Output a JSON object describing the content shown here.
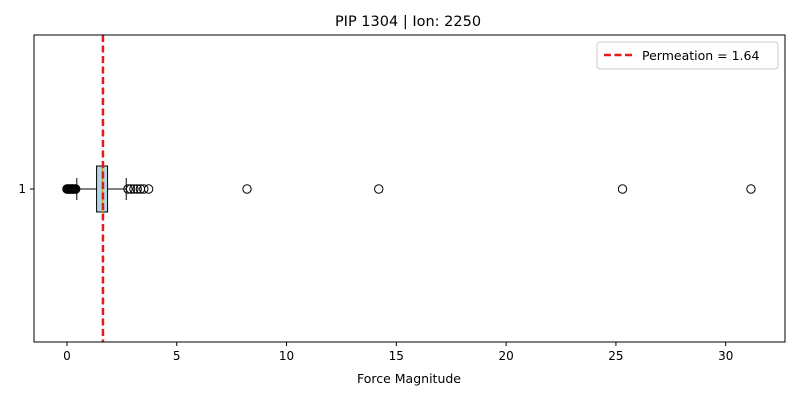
{
  "chart_data": {
    "type": "boxplot",
    "orientation": "horizontal",
    "title": "PIP 1304 | Ion: 2250",
    "xlabel": "Force Magnitude",
    "ylabel": "",
    "xlim": [
      -1.5,
      32.7
    ],
    "xticks": [
      0,
      5,
      10,
      15,
      20,
      25,
      30
    ],
    "yticks": [
      "1"
    ],
    "grid": false,
    "legend": {
      "placement": "top-right",
      "entries": [
        "Permeation = 1.64"
      ]
    },
    "box": {
      "category": "1",
      "q1": 1.35,
      "median": 1.62,
      "q3": 1.85,
      "whisker_low": 0.45,
      "whisker_high": 2.7,
      "fill": "#add8e6",
      "median_color": "#d4a017"
    },
    "outliers": [
      0.0,
      0.04,
      0.08,
      0.12,
      0.16,
      0.2,
      0.24,
      0.28,
      0.32,
      0.36,
      0.4,
      2.78,
      2.9,
      3.05,
      3.2,
      3.35,
      3.5,
      3.72,
      8.2,
      14.2,
      25.3,
      31.15
    ],
    "reference_line": {
      "value": 1.64,
      "label": "Permeation = 1.64",
      "color": "#e41a1c",
      "style": "dashed"
    }
  }
}
